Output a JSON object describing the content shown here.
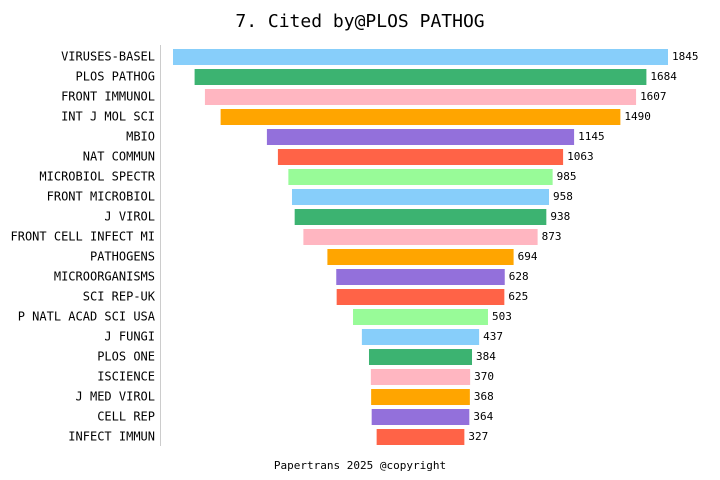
{
  "chart_data": {
    "type": "bar",
    "orientation": "horizontal",
    "align": "center",
    "title": "7. Cited by@PLOS PATHOG",
    "footer": "Papertrans 2025 @copyright",
    "categories": [
      "VIRUSES-BASEL",
      "PLOS PATHOG",
      "FRONT IMMUNOL",
      "INT J MOL SCI",
      "MBIO",
      "NAT COMMUN",
      "MICROBIOL SPECTR",
      "FRONT MICROBIOL",
      "J VIROL",
      "FRONT CELL INFECT MI",
      "PATHOGENS",
      "MICROORGANISMS",
      "SCI REP-UK",
      "P NATL ACAD SCI USA",
      "J FUNGI",
      "PLOS ONE",
      "ISCIENCE",
      "J MED VIROL",
      "CELL REP",
      "INFECT IMMUN"
    ],
    "values": [
      1845,
      1684,
      1607,
      1490,
      1145,
      1063,
      985,
      958,
      938,
      873,
      694,
      628,
      625,
      503,
      437,
      384,
      370,
      368,
      364,
      327
    ],
    "colors": [
      "#87cefa",
      "#3cb371",
      "#ffb6c1",
      "#ffa500",
      "#9370db",
      "#ff6347",
      "#98fb98"
    ]
  }
}
